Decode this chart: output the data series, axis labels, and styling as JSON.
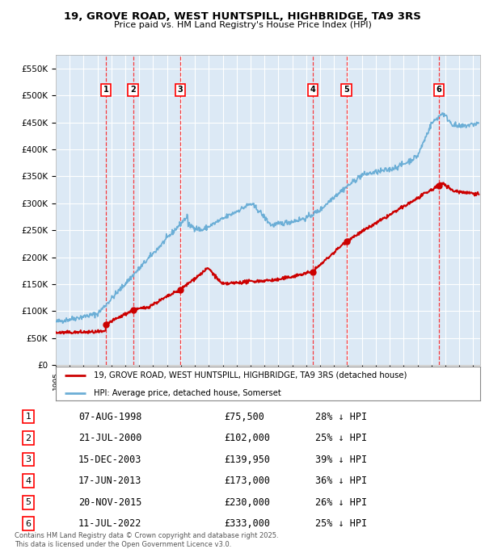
{
  "title": "19, GROVE ROAD, WEST HUNTSPILL, HIGHBRIDGE, TA9 3RS",
  "subtitle": "Price paid vs. HM Land Registry's House Price Index (HPI)",
  "bg_color": "#dce9f5",
  "plot_bg_color": "#dce9f5",
  "grid_color": "#ffffff",
  "hpi_color": "#6baed6",
  "price_color": "#cc0000",
  "ylim": [
    0,
    575000
  ],
  "sale_dates_num": [
    1998.6,
    2000.55,
    2003.96,
    2013.46,
    2015.89,
    2022.53
  ],
  "sale_prices": [
    75500,
    102000,
    139950,
    173000,
    230000,
    333000
  ],
  "sale_labels": [
    "1",
    "2",
    "3",
    "4",
    "5",
    "6"
  ],
  "sale_info": [
    {
      "label": "1",
      "date": "07-AUG-1998",
      "price": "£75,500",
      "pct": "28% ↓ HPI"
    },
    {
      "label": "2",
      "date": "21-JUL-2000",
      "price": "£102,000",
      "pct": "25% ↓ HPI"
    },
    {
      "label": "3",
      "date": "15-DEC-2003",
      "price": "£139,950",
      "pct": "39% ↓ HPI"
    },
    {
      "label": "4",
      "date": "17-JUN-2013",
      "price": "£173,000",
      "pct": "36% ↓ HPI"
    },
    {
      "label": "5",
      "date": "20-NOV-2015",
      "price": "£230,000",
      "pct": "26% ↓ HPI"
    },
    {
      "label": "6",
      "date": "11-JUL-2022",
      "price": "£333,000",
      "pct": "25% ↓ HPI"
    }
  ],
  "legend_red": "19, GROVE ROAD, WEST HUNTSPILL, HIGHBRIDGE, TA9 3RS (detached house)",
  "legend_blue": "HPI: Average price, detached house, Somerset",
  "footnote": "Contains HM Land Registry data © Crown copyright and database right 2025.\nThis data is licensed under the Open Government Licence v3.0.",
  "xmin": 1995.0,
  "xmax": 2025.5
}
